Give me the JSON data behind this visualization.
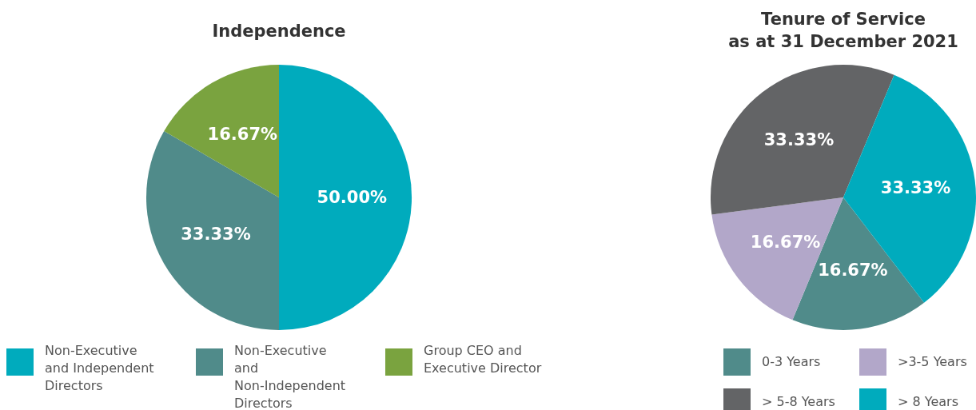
{
  "chart_data": [
    {
      "type": "pie",
      "title": "Independence",
      "categories": [
        "Non-Executive and Independent Directors",
        "Non-Executive and Non-Independent Directors",
        "Group CEO and Executive Director"
      ],
      "values": [
        50,
        33.33,
        16.67
      ],
      "colors": [
        "#00abbd",
        "#508b8a",
        "#7aa33f"
      ],
      "value_labels": [
        "50.00%",
        "33.33%",
        "16.67%"
      ],
      "legend": "bottom"
    },
    {
      "type": "pie",
      "title": "Tenure of Service\nas at 31 December 2021",
      "categories": [
        "0-3 Years",
        ">3-5 Years",
        "> 5-8 Years",
        "> 8 Years"
      ],
      "values": [
        16.67,
        16.67,
        33.33,
        33.33
      ],
      "colors": [
        "#508b8a",
        "#b2a7c9",
        "#636466",
        "#00abbd"
      ],
      "value_labels": [
        "16.67%",
        "16.67%",
        "33.33%",
        "33.33%"
      ],
      "legend": "bottom"
    }
  ]
}
